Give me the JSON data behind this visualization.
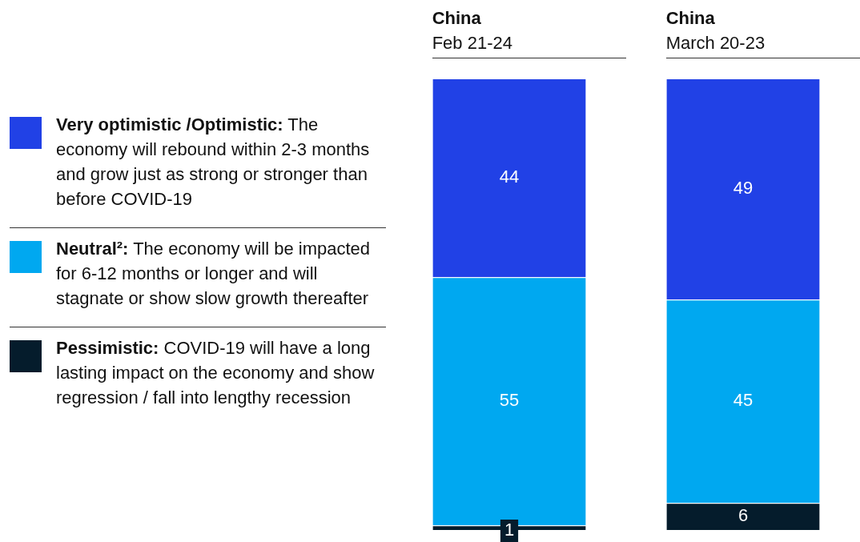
{
  "chart_data": {
    "type": "bar",
    "stacked": true,
    "categories": [
      "China\nFeb 21-24",
      "China\nMarch 20-23"
    ],
    "legend": "left",
    "data_labels": true,
    "series": [
      {
        "name": "Pessimistic: COVID-19 will have a long lasting impact on the economy and show regression / fall into lengthy recession",
        "color": "#051c2c",
        "values": [
          1,
          6
        ]
      },
      {
        "name": "Neutral²: The economy will be impacted for 6-12 months or longer and will stagnate or show slow growth thereafter",
        "color": "#00a8f0",
        "values": [
          55,
          45
        ]
      },
      {
        "name": "Very optimistic /Optimistic: The economy will rebound within 2-3 months and grow just as strong or stronger than before COVID-19",
        "color": "#2141e6",
        "values": [
          44,
          49
        ]
      }
    ]
  }
}
